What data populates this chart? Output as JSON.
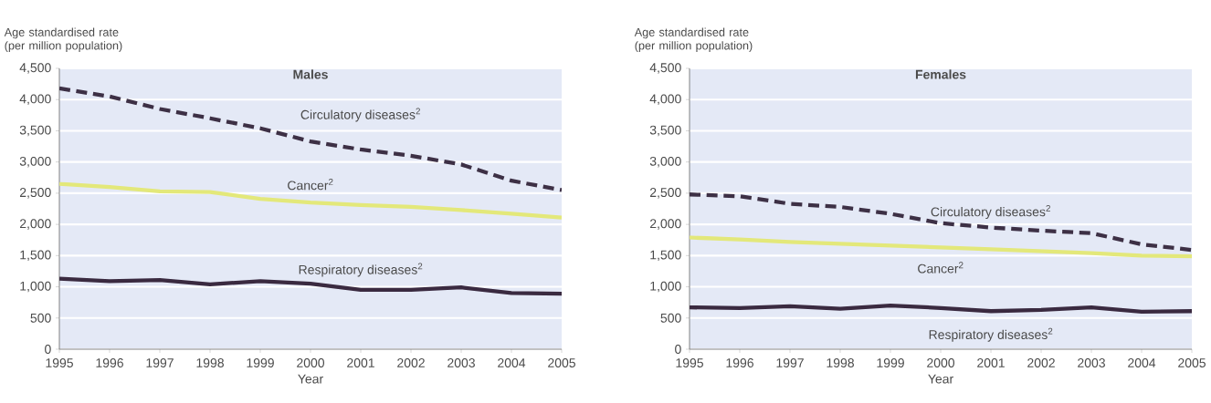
{
  "chart_data": [
    {
      "type": "line",
      "title": "Males",
      "xlabel": "Year",
      "ylabel": "Age standardised rate (per million population)",
      "x": [
        1995,
        1996,
        1997,
        1998,
        1999,
        2000,
        2001,
        2002,
        2003,
        2004,
        2005
      ],
      "series": [
        {
          "name": "Circulatory diseases$^{2}$",
          "color": "#3d3045",
          "line_style": "dashed",
          "values": [
            4180,
            4050,
            3850,
            3700,
            3540,
            3330,
            3200,
            3100,
            2960,
            2700,
            2550
          ]
        },
        {
          "name": "Cancer$^{2}$",
          "color": "#e3e87a",
          "line_style": "solid",
          "values": [
            2650,
            2600,
            2530,
            2520,
            2410,
            2350,
            2310,
            2280,
            2230,
            2170,
            2110
          ]
        },
        {
          "name": "Respiratory diseases$^{2}$",
          "color": "#3a2a40",
          "line_style": "solid",
          "values": [
            1130,
            1090,
            1110,
            1040,
            1090,
            1050,
            950,
            950,
            990,
            900,
            890
          ]
        }
      ],
      "xlim": [
        1995,
        2005
      ],
      "ylim": [
        0,
        4500
      ],
      "xticks": [
        {
          "value": 1995,
          "label": "1995"
        },
        {
          "value": 1996,
          "label": "1996"
        },
        {
          "value": 1997,
          "label": "1997"
        },
        {
          "value": 1998,
          "label": "1998"
        },
        {
          "value": 1999,
          "label": "1999"
        },
        {
          "value": 2000,
          "label": "2000"
        },
        {
          "value": 2001,
          "label": "2001"
        },
        {
          "value": 2002,
          "label": "2002"
        },
        {
          "value": 2003,
          "label": "2003"
        },
        {
          "value": 2004,
          "label": "2004"
        },
        {
          "value": 2005,
          "label": "2005"
        }
      ],
      "yticks": [
        0,
        500,
        {
          "value": 1000,
          "label": "1,000"
        },
        {
          "value": 1500,
          "label": "1,500"
        },
        {
          "value": 2000,
          "label": "2,000"
        },
        {
          "value": 2500,
          "label": "2,500"
        },
        {
          "value": 3000,
          "label": "3,000"
        },
        {
          "value": 3500,
          "label": "3,500"
        },
        {
          "value": 4000,
          "label": "4,000"
        },
        {
          "value": 4500,
          "label": "4,500"
        }
      ],
      "grid": "y",
      "marker": "none"
    },
    {
      "type": "line",
      "title": "Females",
      "xlabel": "Year",
      "ylabel": "Age standardised rate (per million population)",
      "x": [
        1995,
        1996,
        1997,
        1998,
        1999,
        2000,
        2001,
        2002,
        2003,
        2004,
        2005
      ],
      "series": [
        {
          "name": "Circulatory diseases$^{2}$",
          "color": "#3d3045",
          "line_style": "dashed",
          "values": [
            2480,
            2450,
            2330,
            2280,
            2170,
            2020,
            1950,
            1900,
            1860,
            1680,
            1590
          ]
        },
        {
          "name": "Cancer$^{2}$",
          "color": "#e3e87a",
          "line_style": "solid",
          "values": [
            1790,
            1760,
            1720,
            1690,
            1660,
            1630,
            1600,
            1570,
            1540,
            1500,
            1490
          ]
        },
        {
          "name": "Respiratory diseases$^{2}$",
          "color": "#3a2a40",
          "line_style": "solid",
          "values": [
            670,
            660,
            690,
            650,
            700,
            660,
            610,
            630,
            670,
            600,
            610
          ]
        }
      ],
      "xlim": [
        1995,
        2005
      ],
      "ylim": [
        0,
        4500
      ],
      "xticks": [
        {
          "value": 1995,
          "label": "1995"
        },
        {
          "value": 1996,
          "label": "1996"
        },
        {
          "value": 1997,
          "label": "1997"
        },
        {
          "value": 1998,
          "label": "1998"
        },
        {
          "value": 1999,
          "label": "1999"
        },
        {
          "value": 2000,
          "label": "2000"
        },
        {
          "value": 2001,
          "label": "2001"
        },
        {
          "value": 2002,
          "label": "2002"
        },
        {
          "value": 2003,
          "label": "2003"
        },
        {
          "value": 2004,
          "label": "2004"
        },
        {
          "value": 2005,
          "label": "2005"
        }
      ],
      "yticks": [
        0,
        500,
        {
          "value": 1000,
          "label": "1,000"
        },
        {
          "value": 1500,
          "label": "1,500"
        },
        {
          "value": 2000,
          "label": "2,000"
        },
        {
          "value": 2500,
          "label": "2,500"
        },
        {
          "value": 3000,
          "label": "3,000"
        },
        {
          "value": 3500,
          "label": "3,500"
        },
        {
          "value": 4000,
          "label": "4,000"
        },
        {
          "value": 4500,
          "label": "4,500"
        }
      ],
      "grid": "y",
      "marker": "none"
    }
  ]
}
